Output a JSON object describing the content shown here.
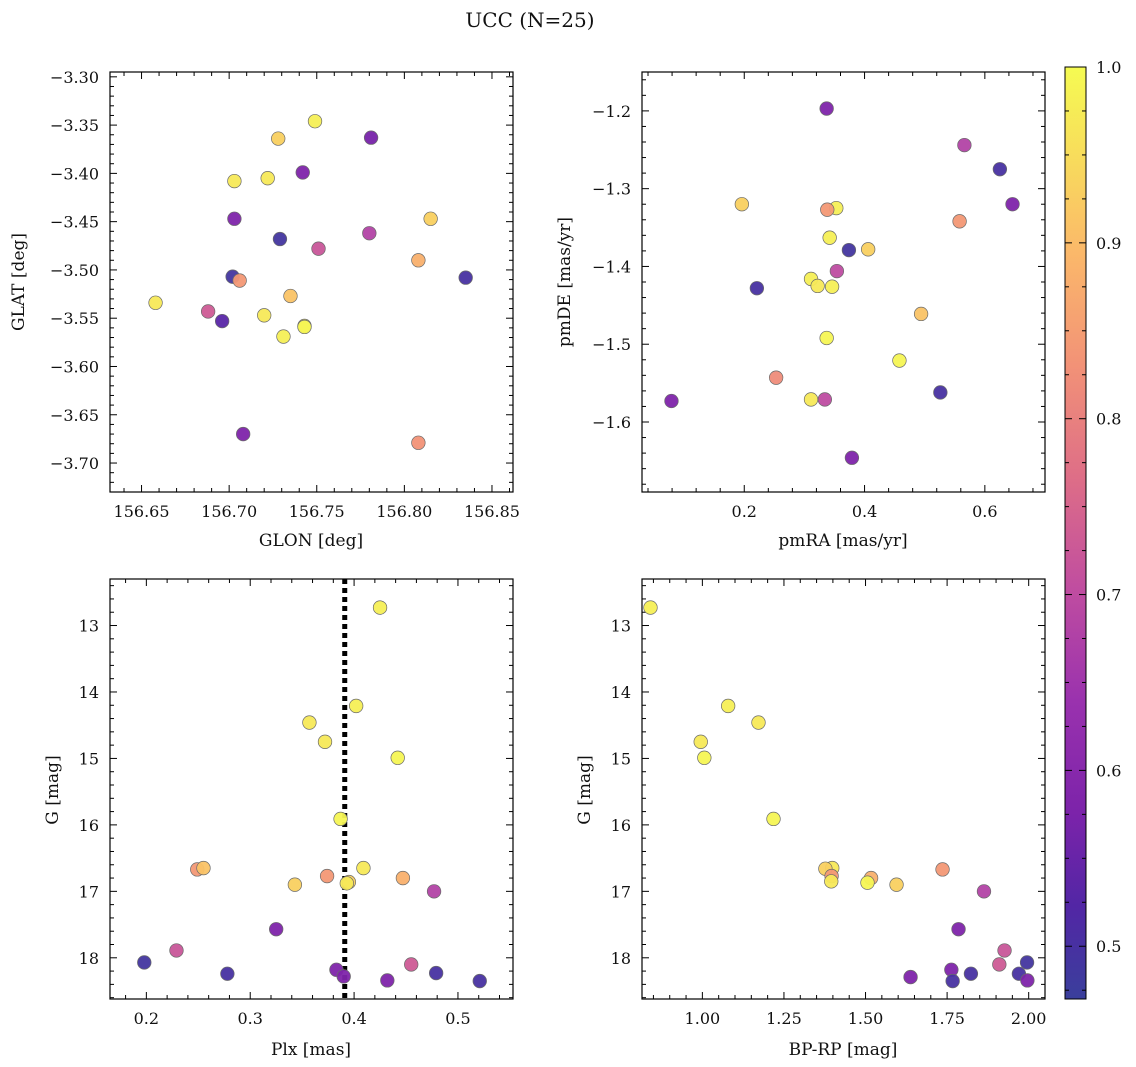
{
  "title": "UCC (N=25)",
  "colorbar": {
    "cmap": "plasma",
    "range": [
      0.47,
      1.0
    ],
    "ticks": [
      "0.5",
      "0.6",
      "0.7",
      "0.8",
      "0.9",
      "1.0"
    ]
  },
  "chart_data": [
    {
      "type": "scatter",
      "id": "glon-glat",
      "xlabel": "GLON [deg]",
      "ylabel": "GLAT [deg]",
      "xlim": [
        156.632,
        156.862
      ],
      "ylim": [
        -3.73,
        -3.295
      ],
      "xticks": [
        "156.65",
        "156.70",
        "156.75",
        "156.80",
        "156.85"
      ],
      "yticks": [
        "-3.30",
        "-3.35",
        "-3.40",
        "-3.45",
        "-3.50",
        "-3.55",
        "-3.60",
        "-3.65",
        "-3.70"
      ],
      "points": [
        {
          "x": 156.749,
          "y": -3.346,
          "c": 0.98
        },
        {
          "x": 156.728,
          "y": -3.364,
          "c": 0.93
        },
        {
          "x": 156.781,
          "y": -3.363,
          "c": 0.57
        },
        {
          "x": 156.742,
          "y": -3.399,
          "c": 0.58
        },
        {
          "x": 156.722,
          "y": -3.405,
          "c": 0.97
        },
        {
          "x": 156.703,
          "y": -3.408,
          "c": 0.97
        },
        {
          "x": 156.703,
          "y": -3.447,
          "c": 0.58
        },
        {
          "x": 156.815,
          "y": -3.447,
          "c": 0.93
        },
        {
          "x": 156.78,
          "y": -3.462,
          "c": 0.68
        },
        {
          "x": 156.729,
          "y": -3.468,
          "c": 0.49
        },
        {
          "x": 156.751,
          "y": -3.478,
          "c": 0.72
        },
        {
          "x": 156.808,
          "y": -3.49,
          "c": 0.88
        },
        {
          "x": 156.702,
          "y": -3.507,
          "c": 0.49
        },
        {
          "x": 156.835,
          "y": -3.508,
          "c": 0.5
        },
        {
          "x": 156.706,
          "y": -3.511,
          "c": 0.84
        },
        {
          "x": 156.735,
          "y": -3.527,
          "c": 0.91
        },
        {
          "x": 156.658,
          "y": -3.534,
          "c": 0.97
        },
        {
          "x": 156.688,
          "y": -3.543,
          "c": 0.73
        },
        {
          "x": 156.72,
          "y": -3.547,
          "c": 0.97
        },
        {
          "x": 156.696,
          "y": -3.553,
          "c": 0.53
        },
        {
          "x": 156.743,
          "y": -3.558,
          "c": 0.97
        },
        {
          "x": 156.743,
          "y": -3.559,
          "c": 0.99
        },
        {
          "x": 156.731,
          "y": -3.569,
          "c": 0.98
        },
        {
          "x": 156.708,
          "y": -3.67,
          "c": 0.58
        },
        {
          "x": 156.808,
          "y": -3.679,
          "c": 0.83
        }
      ]
    },
    {
      "type": "scatter",
      "id": "pmra-pmde",
      "xlabel": "pmRA [mas/yr]",
      "ylabel": "pmDE [mas/yr]",
      "xlim": [
        0.03,
        0.7
      ],
      "ylim": [
        -1.69,
        -1.15
      ],
      "xticks": [
        "0.2",
        "0.4",
        "0.6"
      ],
      "yticks": [
        "-1.2",
        "-1.3",
        "-1.4",
        "-1.5",
        "-1.6"
      ],
      "points": [
        {
          "x": 0.337,
          "y": -1.197,
          "c": 0.58
        },
        {
          "x": 0.566,
          "y": -1.244,
          "c": 0.68
        },
        {
          "x": 0.625,
          "y": -1.275,
          "c": 0.5
        },
        {
          "x": 0.646,
          "y": -1.32,
          "c": 0.58
        },
        {
          "x": 0.196,
          "y": -1.32,
          "c": 0.93
        },
        {
          "x": 0.353,
          "y": -1.325,
          "c": 0.98
        },
        {
          "x": 0.338,
          "y": -1.327,
          "c": 0.84
        },
        {
          "x": 0.558,
          "y": -1.342,
          "c": 0.84
        },
        {
          "x": 0.342,
          "y": -1.363,
          "c": 0.98
        },
        {
          "x": 0.374,
          "y": -1.379,
          "c": 0.49
        },
        {
          "x": 0.406,
          "y": -1.378,
          "c": 0.93
        },
        {
          "x": 0.354,
          "y": -1.406,
          "c": 0.7
        },
        {
          "x": 0.311,
          "y": -1.416,
          "c": 0.98
        },
        {
          "x": 0.322,
          "y": -1.425,
          "c": 0.97
        },
        {
          "x": 0.346,
          "y": -1.426,
          "c": 0.98
        },
        {
          "x": 0.221,
          "y": -1.428,
          "c": 0.5
        },
        {
          "x": 0.494,
          "y": -1.461,
          "c": 0.91
        },
        {
          "x": 0.337,
          "y": -1.492,
          "c": 0.99
        },
        {
          "x": 0.458,
          "y": -1.521,
          "c": 0.99
        },
        {
          "x": 0.253,
          "y": -1.543,
          "c": 0.82
        },
        {
          "x": 0.526,
          "y": -1.562,
          "c": 0.5
        },
        {
          "x": 0.311,
          "y": -1.571,
          "c": 0.97
        },
        {
          "x": 0.334,
          "y": -1.571,
          "c": 0.7
        },
        {
          "x": 0.079,
          "y": -1.573,
          "c": 0.58
        },
        {
          "x": 0.379,
          "y": -1.646,
          "c": 0.58
        }
      ]
    },
    {
      "type": "scatter",
      "id": "plx-g",
      "xlabel": "Plx [mas]",
      "ylabel": "G [mag]",
      "xlim": [
        0.165,
        0.553
      ],
      "ylim": [
        18.62,
        12.3
      ],
      "xticks": [
        "0.2",
        "0.3",
        "0.4",
        "0.5"
      ],
      "yticks": [
        "13",
        "14",
        "15",
        "16",
        "17",
        "18"
      ],
      "vline": 0.391,
      "points": [
        {
          "x": 0.425,
          "y": 12.73,
          "c": 0.98
        },
        {
          "x": 0.402,
          "y": 14.21,
          "c": 0.98
        },
        {
          "x": 0.357,
          "y": 14.46,
          "c": 0.97
        },
        {
          "x": 0.372,
          "y": 14.75,
          "c": 0.97
        },
        {
          "x": 0.442,
          "y": 14.99,
          "c": 0.99
        },
        {
          "x": 0.387,
          "y": 15.91,
          "c": 0.99
        },
        {
          "x": 0.409,
          "y": 16.65,
          "c": 0.97
        },
        {
          "x": 0.249,
          "y": 16.67,
          "c": 0.84
        },
        {
          "x": 0.255,
          "y": 16.65,
          "c": 0.91
        },
        {
          "x": 0.374,
          "y": 16.77,
          "c": 0.84
        },
        {
          "x": 0.447,
          "y": 16.8,
          "c": 0.88
        },
        {
          "x": 0.395,
          "y": 16.86,
          "c": 0.93
        },
        {
          "x": 0.393,
          "y": 16.88,
          "c": 0.97
        },
        {
          "x": 0.343,
          "y": 16.9,
          "c": 0.93
        },
        {
          "x": 0.477,
          "y": 17.0,
          "c": 0.68
        },
        {
          "x": 0.325,
          "y": 17.57,
          "c": 0.58
        },
        {
          "x": 0.229,
          "y": 17.89,
          "c": 0.72
        },
        {
          "x": 0.198,
          "y": 18.07,
          "c": 0.49
        },
        {
          "x": 0.455,
          "y": 18.1,
          "c": 0.73
        },
        {
          "x": 0.383,
          "y": 18.18,
          "c": 0.58
        },
        {
          "x": 0.278,
          "y": 18.24,
          "c": 0.5
        },
        {
          "x": 0.479,
          "y": 18.23,
          "c": 0.5
        },
        {
          "x": 0.39,
          "y": 18.28,
          "c": 0.58
        },
        {
          "x": 0.432,
          "y": 18.34,
          "c": 0.58
        },
        {
          "x": 0.521,
          "y": 18.35,
          "c": 0.5
        }
      ]
    },
    {
      "type": "scatter",
      "id": "bprp-g",
      "xlabel": "BP-RP [mag]",
      "ylabel": "G [mag]",
      "xlim": [
        0.815,
        2.05
      ],
      "ylim": [
        18.62,
        12.3
      ],
      "xticks": [
        "1.00",
        "1.25",
        "1.50",
        "1.75",
        "2.00"
      ],
      "yticks": [
        "13",
        "14",
        "15",
        "16",
        "17",
        "18"
      ],
      "points": [
        {
          "x": 0.841,
          "y": 12.73,
          "c": 0.98
        },
        {
          "x": 1.079,
          "y": 14.21,
          "c": 0.98
        },
        {
          "x": 1.172,
          "y": 14.46,
          "c": 0.97
        },
        {
          "x": 0.995,
          "y": 14.75,
          "c": 0.97
        },
        {
          "x": 1.006,
          "y": 14.99,
          "c": 0.99
        },
        {
          "x": 1.218,
          "y": 15.91,
          "c": 0.99
        },
        {
          "x": 1.398,
          "y": 16.65,
          "c": 0.97
        },
        {
          "x": 1.377,
          "y": 16.66,
          "c": 0.93
        },
        {
          "x": 1.736,
          "y": 16.67,
          "c": 0.84
        },
        {
          "x": 1.396,
          "y": 16.77,
          "c": 0.84
        },
        {
          "x": 1.517,
          "y": 16.8,
          "c": 0.88
        },
        {
          "x": 1.395,
          "y": 16.85,
          "c": 0.97
        },
        {
          "x": 1.506,
          "y": 16.87,
          "c": 0.99
        },
        {
          "x": 1.595,
          "y": 16.9,
          "c": 0.93
        },
        {
          "x": 1.863,
          "y": 17.0,
          "c": 0.68
        },
        {
          "x": 1.785,
          "y": 17.57,
          "c": 0.58
        },
        {
          "x": 1.926,
          "y": 17.89,
          "c": 0.72
        },
        {
          "x": 1.995,
          "y": 18.07,
          "c": 0.49
        },
        {
          "x": 1.91,
          "y": 18.1,
          "c": 0.73
        },
        {
          "x": 1.763,
          "y": 18.18,
          "c": 0.58
        },
        {
          "x": 1.823,
          "y": 18.24,
          "c": 0.5
        },
        {
          "x": 1.97,
          "y": 18.24,
          "c": 0.5
        },
        {
          "x": 1.638,
          "y": 18.29,
          "c": 0.58
        },
        {
          "x": 1.996,
          "y": 18.34,
          "c": 0.58
        },
        {
          "x": 1.767,
          "y": 18.35,
          "c": 0.5
        }
      ]
    }
  ]
}
